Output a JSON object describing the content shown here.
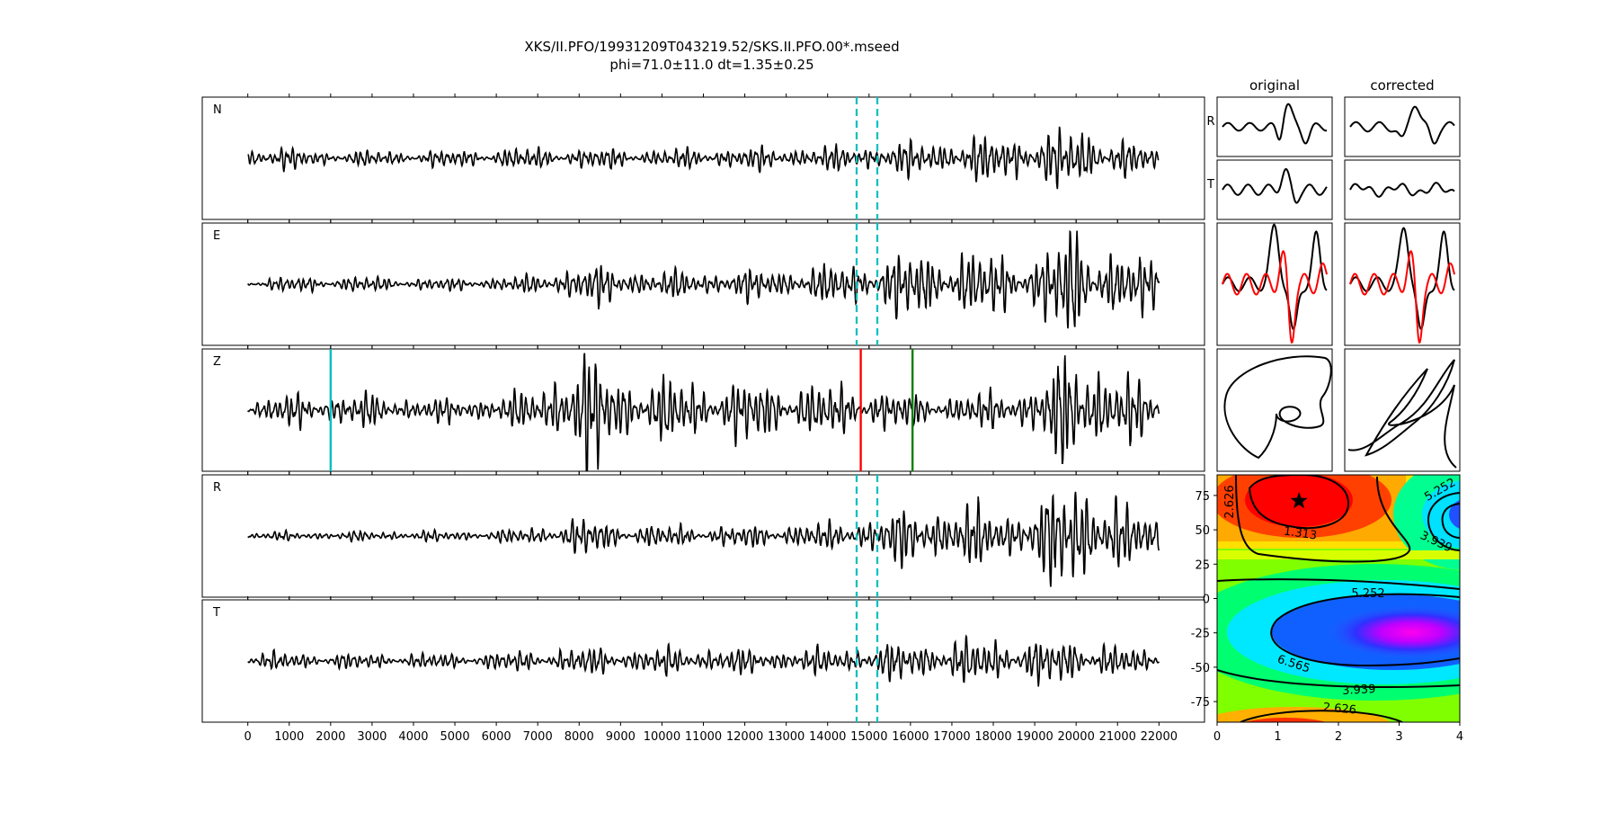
{
  "title_line1": "XKS/II.PFO/19931209T043219.52/SKS.II.PFO.00*.mseed",
  "title_line2": "phi=71.0±11.0 dt=1.35±0.25",
  "colors": {
    "trace": "#000000",
    "window_marker": "#00bfbf",
    "z_marker_cyan": "#00bfbf",
    "z_marker_red": "#ff0000",
    "z_marker_green": "#008000",
    "shifted_trace": "#ff0000"
  },
  "chart_data": [
    {
      "type": "line",
      "name": "seismogram-panels",
      "channels": [
        "N",
        "E",
        "Z",
        "R",
        "T"
      ],
      "xlim": [
        -1100,
        23100
      ],
      "xticks": [
        0,
        1000,
        2000,
        3000,
        4000,
        5000,
        6000,
        7000,
        8000,
        9000,
        10000,
        11000,
        12000,
        13000,
        14000,
        15000,
        16000,
        17000,
        18000,
        19000,
        20000,
        21000,
        22000
      ],
      "trace_range": [
        0,
        22000
      ],
      "window_markers": {
        "channels": [
          "N",
          "E",
          "R",
          "T"
        ],
        "x": [
          14700,
          15200
        ],
        "style": "dashed"
      },
      "z_markers": [
        {
          "x": 2000,
          "color": "cyan"
        },
        {
          "x": 14800,
          "color": "red"
        },
        {
          "x": 16050,
          "color": "green"
        }
      ]
    },
    {
      "type": "line",
      "name": "particle-motion-panels",
      "columns": [
        "original",
        "corrected"
      ],
      "row_labels": [
        "R",
        "T"
      ]
    },
    {
      "type": "heatmap",
      "name": "error-surface",
      "xlim": [
        0,
        4
      ],
      "ylim": [
        -90,
        90
      ],
      "xticks": [
        0,
        1,
        2,
        3,
        4
      ],
      "yticks": [
        75,
        50,
        25,
        0,
        -25,
        -50,
        -75
      ],
      "colormap": "gist_rainbow",
      "contour_labels": [
        "2.626",
        "1.313",
        "3.939",
        "5.252",
        "5.252",
        "6.565",
        "3.939",
        "2.626"
      ],
      "best_fit": {
        "dt": 1.35,
        "phi": 71.0,
        "marker": "star"
      }
    }
  ]
}
